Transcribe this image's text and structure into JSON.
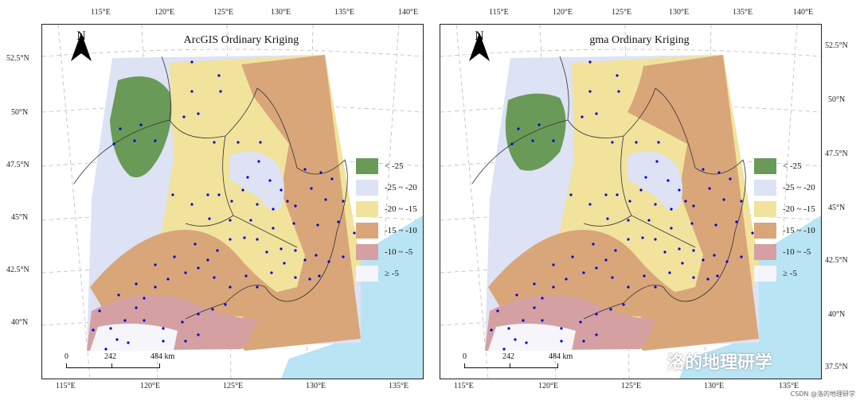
{
  "maps": [
    {
      "title": "ArcGIS Ordinary Kriging"
    },
    {
      "title": "gma Ordinary Kriging"
    }
  ],
  "north_label": "N",
  "legend": [
    {
      "label": "< -25",
      "color": "#6a9a58"
    },
    {
      "label": "-25 ~ -20",
      "color": "#dde2f4"
    },
    {
      "label": "-20 ~ -15",
      "color": "#f1e39b"
    },
    {
      "label": "-15 ~ -10",
      "color": "#d9a67a"
    },
    {
      "label": "-10 ~ -5",
      "color": "#d4a0a2"
    },
    {
      "label": "≥ -5",
      "color": "#f5f5fb"
    }
  ],
  "scalebar": {
    "labels": [
      "0",
      "242",
      "484 km"
    ]
  },
  "ticks": {
    "top": [
      "115°E",
      "120°E",
      "125°E",
      "130°E",
      "135°E",
      "140°E"
    ],
    "bottom": [
      "115°E",
      "120°E",
      "125°E",
      "130°E",
      "135°E"
    ],
    "left": [
      "52.5°N",
      "50°N",
      "47.5°N",
      "45°N",
      "42.5°N",
      "40°N"
    ],
    "right": [
      "52.5°N",
      "50°N",
      "47.5°N",
      "45°N",
      "42.5°N",
      "40°N",
      "37.5°N"
    ]
  },
  "watermark": "洛的地理研学",
  "credit": "CSDN @洛的地理研学",
  "station_color": "#0000dd"
}
